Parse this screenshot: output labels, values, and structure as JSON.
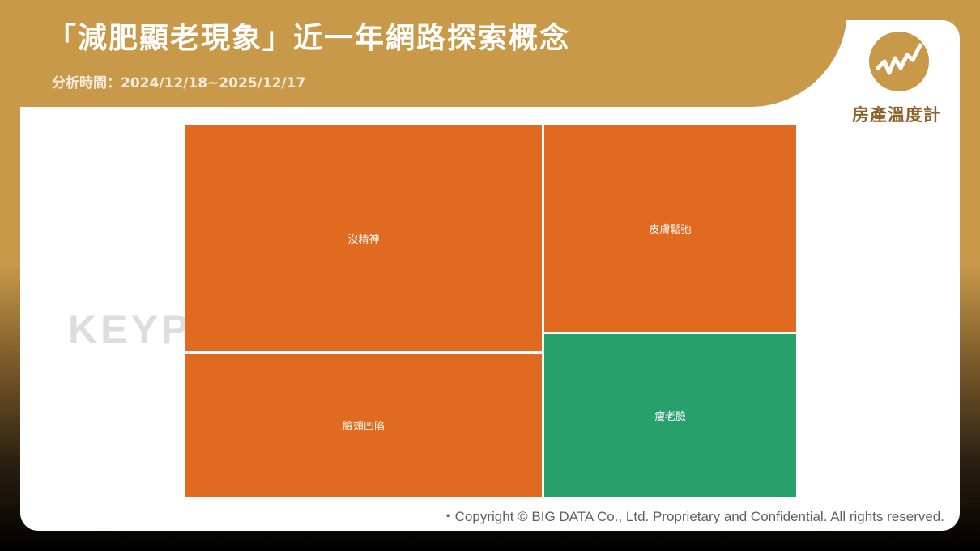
{
  "header": {
    "title": "「減肥顯老現象」近一年網路探索概念",
    "subtitle": "分析時間：2024/12/18~2025/12/17"
  },
  "brand": {
    "name": "房產溫度計",
    "logo_icon": "rising-line-chart-icon",
    "logo_color": "#c9994a"
  },
  "watermark": {
    "text": "KEYPO"
  },
  "chart_data": {
    "type": "treemap",
    "items": [
      {
        "label": "沒精神",
        "value": 0.352,
        "color": "#e06b20"
      },
      {
        "label": "臉頰凹陷",
        "value": 0.222,
        "color": "#e06b20"
      },
      {
        "label": "皮膚鬆弛",
        "value": 0.23,
        "color": "#e06b20"
      },
      {
        "label": "瘦老臉",
        "value": 0.18,
        "color": "#28a06e"
      }
    ]
  },
  "footer": {
    "copyright": "・Copyright © BIG DATA Co., Ltd. Proprietary and Confidential. All rights reserved."
  }
}
